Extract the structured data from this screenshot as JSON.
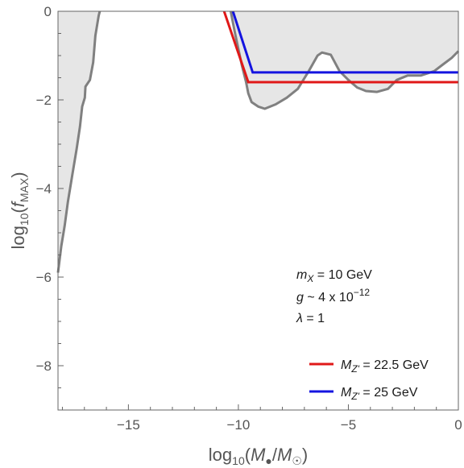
{
  "chart_data": {
    "type": "line",
    "xlabel": "log10(M●/M☉)",
    "ylabel": "log10(fMAX)",
    "xlim": [
      -18.2,
      0
    ],
    "ylim": [
      -9.0,
      0
    ],
    "xticks": [
      -15,
      -10,
      -5,
      0
    ],
    "yticks": [
      0,
      -2,
      -4,
      -6,
      -8
    ],
    "xtick_labels": [
      "−15",
      "−10",
      "−5",
      "0"
    ],
    "ytick_labels": [
      "0",
      "−2",
      "−4",
      "−6",
      "−8"
    ],
    "grid": false,
    "legend_position": "bottom-right",
    "colors": {
      "excluded_fill": "#e6e6e6",
      "boundary": "#808080",
      "series_a": "#e01818",
      "series_b": "#1414e0",
      "frame": "#666666"
    },
    "excluded_regions": [
      {
        "boundary": [
          [
            -18.2,
            -5.9
          ],
          [
            -18.05,
            -5.3
          ],
          [
            -17.9,
            -4.85
          ],
          [
            -17.75,
            -4.3
          ],
          [
            -17.55,
            -3.7
          ],
          [
            -17.35,
            -3.1
          ],
          [
            -17.2,
            -2.6
          ],
          [
            -17.1,
            -2.15
          ],
          [
            -16.98,
            -1.95
          ],
          [
            -16.95,
            -1.7
          ],
          [
            -16.75,
            -1.55
          ],
          [
            -16.6,
            -1.15
          ],
          [
            -16.5,
            -0.55
          ],
          [
            -16.35,
            -0.1
          ],
          [
            -16.3,
            0
          ]
        ]
      },
      {
        "boundary": [
          [
            -10.35,
            0
          ],
          [
            -10.15,
            -0.5
          ],
          [
            -9.85,
            -1.2
          ],
          [
            -9.65,
            -1.6
          ],
          [
            -9.55,
            -1.85
          ],
          [
            -9.4,
            -2.05
          ],
          [
            -9.1,
            -2.15
          ],
          [
            -8.8,
            -2.2
          ],
          [
            -8.3,
            -2.1
          ],
          [
            -7.8,
            -1.95
          ],
          [
            -7.3,
            -1.75
          ],
          [
            -6.8,
            -1.35
          ],
          [
            -6.4,
            -1.0
          ],
          [
            -6.2,
            -0.93
          ],
          [
            -5.8,
            -0.98
          ],
          [
            -5.4,
            -1.35
          ],
          [
            -5.0,
            -1.55
          ],
          [
            -4.6,
            -1.72
          ],
          [
            -4.2,
            -1.8
          ],
          [
            -3.7,
            -1.82
          ],
          [
            -3.2,
            -1.75
          ],
          [
            -2.8,
            -1.55
          ],
          [
            -2.3,
            -1.45
          ],
          [
            -1.7,
            -1.45
          ],
          [
            -1.1,
            -1.35
          ],
          [
            -0.7,
            -1.2
          ],
          [
            -0.3,
            -1.05
          ],
          [
            0,
            -0.9
          ]
        ]
      }
    ],
    "series": [
      {
        "name": "M_Z' = 22.5 GeV",
        "label_main": "M",
        "label_sub": "Z'",
        "label_value": " = 22.5 GeV",
        "color": "#e01818",
        "points": [
          [
            -10.65,
            0
          ],
          [
            -9.55,
            -1.6
          ],
          [
            0,
            -1.6
          ]
        ]
      },
      {
        "name": "M_Z' = 25 GeV",
        "label_main": "M",
        "label_sub": "Z'",
        "label_value": " = 25 GeV",
        "color": "#1414e0",
        "points": [
          [
            -10.25,
            0
          ],
          [
            -9.35,
            -1.38
          ],
          [
            0,
            -1.38
          ]
        ]
      }
    ],
    "annotations": [
      {
        "id": "mx",
        "sym": "m",
        "sub": "X",
        "rest": " = 10 GeV"
      },
      {
        "id": "g",
        "sym": "g",
        "rest": " ~ 4 x 10",
        "sup": "−12"
      },
      {
        "id": "lambda",
        "sym": "λ",
        "rest": " = 1"
      }
    ]
  }
}
